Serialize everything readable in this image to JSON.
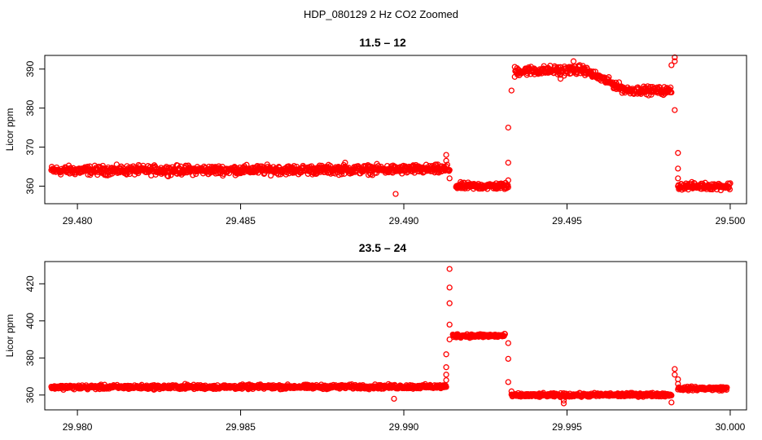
{
  "figure": {
    "title": "HDP_080129  2 Hz CO2 Zoomed"
  },
  "colors": {
    "points": "#ff0000",
    "axes": "#000000",
    "background": "#ffffff"
  },
  "chart_data": [
    {
      "type": "scatter",
      "title": "11.5 – 12",
      "xlabel": "",
      "ylabel": "Licor ppm",
      "xlim": [
        29.479,
        29.5005
      ],
      "ylim": [
        355.5,
        393.5
      ],
      "xticks": [
        29.48,
        29.485,
        29.49,
        29.495,
        29.5
      ],
      "xtick_labels": [
        "29.480",
        "29.485",
        "29.490",
        "29.495",
        "29.500"
      ],
      "yticks": [
        360,
        370,
        380,
        390
      ],
      "ytick_labels": [
        "360",
        "370",
        "380",
        "390"
      ],
      "marker": "open-circle",
      "grid": false,
      "trend_segments": [
        {
          "x_start": 29.4792,
          "x_end": 29.4914,
          "y_start": 364.0,
          "y_end": 364.3,
          "noise": 0.8
        },
        {
          "x_start": 29.4916,
          "x_end": 29.4932,
          "y_start": 360.0,
          "y_end": 360.0,
          "noise": 0.6
        },
        {
          "x_start": 29.4934,
          "x_end": 29.4955,
          "y_start": 389.5,
          "y_end": 389.8,
          "noise": 0.8
        },
        {
          "x_start": 29.4955,
          "x_end": 29.4968,
          "y_start": 389.8,
          "y_end": 384.6,
          "noise": 0.7
        },
        {
          "x_start": 29.4968,
          "x_end": 29.4982,
          "y_start": 384.6,
          "y_end": 384.4,
          "noise": 0.7
        },
        {
          "x_start": 29.4984,
          "x_end": 29.5,
          "y_start": 360.0,
          "y_end": 360.0,
          "noise": 0.6
        }
      ],
      "outliers": [
        [
          29.4913,
          368.0
        ],
        [
          29.4913,
          366.5
        ],
        [
          29.4914,
          362.0
        ],
        [
          29.4932,
          361.5
        ],
        [
          29.4932,
          366.0
        ],
        [
          29.4932,
          375.0
        ],
        [
          29.4933,
          384.5
        ],
        [
          29.4934,
          388.0
        ],
        [
          29.48975,
          358.0
        ],
        [
          29.4948,
          388.5
        ],
        [
          29.4948,
          387.5
        ],
        [
          29.4982,
          391.0
        ],
        [
          29.4983,
          393.0
        ],
        [
          29.4983,
          392.0
        ],
        [
          29.4983,
          379.5
        ],
        [
          29.4984,
          368.5
        ],
        [
          29.4984,
          364.5
        ],
        [
          29.4984,
          362.0
        ],
        [
          29.4952,
          392.0
        ],
        [
          29.4882,
          366.0
        ]
      ]
    },
    {
      "type": "scatter",
      "title": "23.5 – 24",
      "xlabel": "",
      "ylabel": "Licor ppm",
      "xlim": [
        29.979,
        30.0005
      ],
      "ylim": [
        352,
        432
      ],
      "xticks": [
        29.98,
        29.985,
        29.99,
        29.995,
        30.0
      ],
      "xtick_labels": [
        "29.980",
        "29.985",
        "29.990",
        "29.995",
        "30.000"
      ],
      "yticks": [
        360,
        380,
        400,
        420
      ],
      "ytick_labels": [
        "360",
        "380",
        "400",
        "420"
      ],
      "marker": "open-circle",
      "grid": false,
      "trend_segments": [
        {
          "x_start": 29.9792,
          "x_end": 29.9913,
          "y_start": 364.2,
          "y_end": 364.5,
          "noise": 0.8
        },
        {
          "x_start": 29.9915,
          "x_end": 29.9931,
          "y_start": 392.0,
          "y_end": 392.0,
          "noise": 0.7
        },
        {
          "x_start": 29.9933,
          "x_end": 29.9982,
          "y_start": 359.8,
          "y_end": 360.2,
          "noise": 0.7
        },
        {
          "x_start": 29.9984,
          "x_end": 29.9999,
          "y_start": 363.5,
          "y_end": 363.5,
          "noise": 0.7
        }
      ],
      "outliers": [
        [
          29.9914,
          428.0
        ],
        [
          29.9914,
          418.0
        ],
        [
          29.9914,
          409.5
        ],
        [
          29.9914,
          398.0
        ],
        [
          29.9914,
          390.0
        ],
        [
          29.9913,
          382.0
        ],
        [
          29.9913,
          375.0
        ],
        [
          29.9913,
          371.0
        ],
        [
          29.9913,
          368.0
        ],
        [
          29.9932,
          388.0
        ],
        [
          29.9932,
          379.5
        ],
        [
          29.9932,
          367.0
        ],
        [
          29.9933,
          362.0
        ],
        [
          29.9897,
          358.0
        ],
        [
          29.9949,
          355.5
        ],
        [
          29.9949,
          357.0
        ],
        [
          29.9982,
          356.0
        ],
        [
          29.9983,
          374.0
        ],
        [
          29.9983,
          371.0
        ],
        [
          29.9984,
          368.5
        ],
        [
          29.9984,
          366.0
        ],
        [
          29.9833,
          366.0
        ]
      ]
    }
  ]
}
